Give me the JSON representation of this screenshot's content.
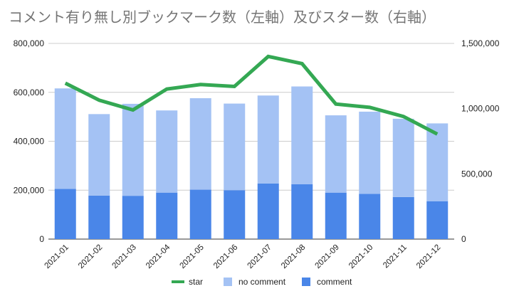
{
  "chart_data": {
    "type": "bar",
    "title": "コメント有り無し別ブックマーク数（左軸）及びスター数（右軸）",
    "categories": [
      "2021-01",
      "2021-02",
      "2021-03",
      "2021-04",
      "2021-05",
      "2021-06",
      "2021-07",
      "2021-08",
      "2021-09",
      "2021-10",
      "2021-11",
      "2021-12"
    ],
    "series": [
      {
        "name": "comment",
        "chart": "stacked-bar",
        "axis": "left",
        "color": "#4a86e8",
        "values": [
          205000,
          178000,
          177000,
          190000,
          202000,
          200000,
          227000,
          224000,
          190000,
          185000,
          172000,
          155000
        ]
      },
      {
        "name": "no comment",
        "chart": "stacked-bar",
        "axis": "left",
        "color": "#a4c2f4",
        "values": [
          411000,
          333000,
          376000,
          336000,
          374000,
          354000,
          360000,
          400000,
          316000,
          336000,
          320000,
          318000
        ]
      },
      {
        "name": "star",
        "chart": "line",
        "axis": "right",
        "color": "#34a853",
        "values": [
          1195000,
          1065000,
          990000,
          1150000,
          1185000,
          1170000,
          1400000,
          1345000,
          1035000,
          1010000,
          940000,
          805000
        ]
      }
    ],
    "left_axis": {
      "ylim": [
        0,
        800000
      ],
      "ticks": [
        0,
        200000,
        400000,
        600000,
        800000
      ],
      "tick_labels": [
        "0",
        "200,000",
        "400,000",
        "600,000",
        "800,000"
      ]
    },
    "right_axis": {
      "ylim": [
        0,
        1500000
      ],
      "ticks": [
        0,
        500000,
        1000000,
        1500000
      ],
      "tick_labels": [
        "0",
        "500,000",
        "1,000,000",
        "1,500,000"
      ]
    },
    "grid": true,
    "legend": {
      "position": "bottom",
      "items": [
        {
          "label": "star",
          "kind": "line",
          "color": "#34a853"
        },
        {
          "label": "no comment",
          "kind": "box",
          "color": "#a4c2f4"
        },
        {
          "label": "comment",
          "kind": "box",
          "color": "#4a86e8"
        }
      ]
    }
  }
}
